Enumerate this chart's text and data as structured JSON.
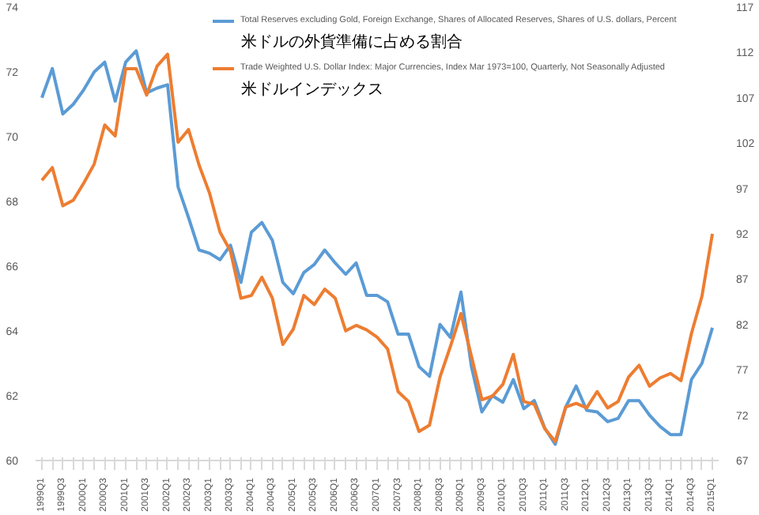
{
  "chart_data": {
    "type": "line",
    "categories": [
      "1999Q1",
      null,
      "1999Q3",
      null,
      "2000Q1",
      null,
      "2000Q3",
      null,
      "2001Q1",
      null,
      "2001Q3",
      null,
      "2002Q1",
      null,
      "2002Q3",
      null,
      "2003Q1",
      null,
      "2003Q3",
      null,
      "2004Q1",
      null,
      "2004Q3",
      null,
      "2005Q1",
      null,
      "2005Q3",
      null,
      "2006Q1",
      null,
      "2006Q3",
      null,
      "2007Q1",
      null,
      "2007Q3",
      null,
      "2008Q1",
      null,
      "2008Q3",
      null,
      "2009Q1",
      null,
      "2009Q3",
      null,
      "2010Q1",
      null,
      "2010Q3",
      null,
      "2011Q1",
      null,
      "2011Q3",
      null,
      "2012Q1",
      null,
      "2012Q3",
      null,
      "2013Q1",
      null,
      "2013Q3",
      null,
      "2014Q1",
      null,
      "2014Q3",
      null,
      "2015Q1"
    ],
    "series": [
      {
        "name": "Total Reserves excluding Gold, Foreign Exchange, Shares of Allocated Reserves, Shares of U.S. dollars, Percent",
        "color": "#5b9bd5",
        "values": [
          71.2,
          72.1,
          70.7,
          71.0,
          71.45,
          72.0,
          72.3,
          71.1,
          72.3,
          72.65,
          71.35,
          71.5,
          71.6,
          68.45,
          67.5,
          66.5,
          66.4,
          66.2,
          66.65,
          65.5,
          67.05,
          67.35,
          66.8,
          65.5,
          65.15,
          65.8,
          66.05,
          66.5,
          66.1,
          65.75,
          66.1,
          65.1,
          65.1,
          64.9,
          63.9,
          63.9,
          62.9,
          62.6,
          64.2,
          63.8,
          65.2,
          62.9,
          61.5,
          62.0,
          61.8,
          62.5,
          61.6,
          61.85,
          61.0,
          60.5,
          61.65,
          62.3,
          61.55,
          61.5,
          61.2,
          61.3,
          61.85,
          61.85,
          61.4,
          61.05,
          60.8,
          60.8,
          62.5,
          63.0,
          64.1
        ]
      },
      {
        "name": "Trade Weighted U.S. Dollar Index: Major Currencies, Index Mar 1973=100, Quarterly, Not Seasonally Adjusted",
        "color": "#ed7d31",
        "axis": "y2",
        "values": [
          97.9,
          99.3,
          95.1,
          95.7,
          97.6,
          99.7,
          104.0,
          102.8,
          110.2,
          110.2,
          107.3,
          110.5,
          111.8,
          102.1,
          103.5,
          99.6,
          96.5,
          92.2,
          90.1,
          84.9,
          85.2,
          87.2,
          84.9,
          79.8,
          81.5,
          85.2,
          84.2,
          85.9,
          84.9,
          81.3,
          81.9,
          81.4,
          80.6,
          79.3,
          74.6,
          73.5,
          70.2,
          70.9,
          76.2,
          79.6,
          83.2,
          78.5,
          73.7,
          74.1,
          75.4,
          78.7,
          73.5,
          73.2,
          70.5,
          69.1,
          72.9,
          73.3,
          72.8,
          74.6,
          72.8,
          73.5,
          76.2,
          77.5,
          75.2,
          76.1,
          76.6,
          75.8,
          81.0,
          85.1,
          92.0
        ]
      }
    ],
    "annotations": [
      "米ドルの外貨準備に占める割合",
      "米ドルインデックス"
    ],
    "ylim": [
      60,
      74
    ],
    "yticks": [
      60,
      62,
      64,
      66,
      68,
      70,
      72,
      74
    ],
    "y2lim": [
      67,
      117
    ],
    "y2ticks": [
      67,
      72,
      77,
      82,
      87,
      92,
      97,
      102,
      107,
      112,
      117
    ],
    "legend": "top",
    "grid": false
  }
}
